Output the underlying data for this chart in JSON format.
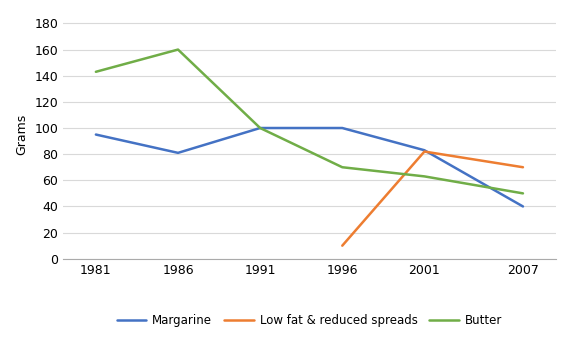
{
  "years": [
    1981,
    1986,
    1991,
    1996,
    2001,
    2007
  ],
  "margarine": [
    95,
    81,
    100,
    100,
    83,
    40
  ],
  "low_fat_years": [
    1996,
    2001,
    2007
  ],
  "low_fat": [
    10,
    82,
    70
  ],
  "butter": [
    143,
    160,
    100,
    70,
    63,
    50
  ],
  "margarine_color": "#4472C4",
  "low_fat_color": "#ED7D31",
  "butter_color": "#70AD47",
  "ylabel": "Grams",
  "ylim": [
    0,
    190
  ],
  "yticks": [
    0,
    20,
    40,
    60,
    80,
    100,
    120,
    140,
    160,
    180
  ],
  "xlim": [
    1979,
    2009
  ],
  "legend_labels": [
    "Margarine",
    "Low fat & reduced spreads",
    "Butter"
  ],
  "background_color": "#FFFFFF",
  "linewidth": 1.8
}
